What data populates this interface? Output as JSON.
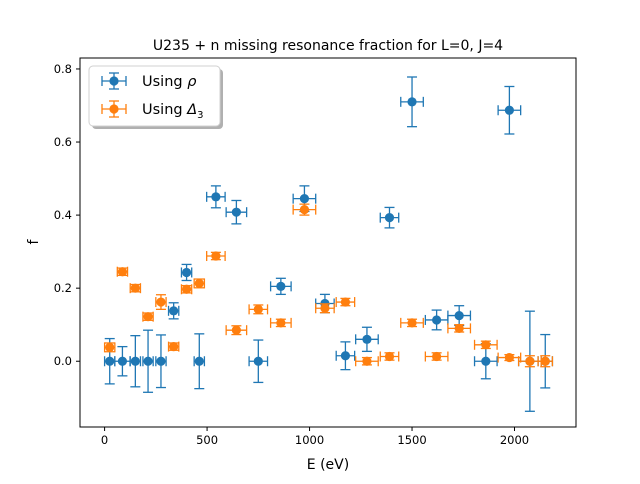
{
  "chart_data": {
    "type": "scatter",
    "title": "U235 + n missing resonance fraction for L=0, J=4",
    "xlabel": "E (eV)",
    "ylabel": "f",
    "xlim": [
      -120,
      2300
    ],
    "ylim": [
      -0.18,
      0.83
    ],
    "xticks": [
      0,
      500,
      1000,
      1500,
      2000
    ],
    "yticks": [
      0.0,
      0.2,
      0.4,
      0.6,
      0.8
    ],
    "xtick_labels": [
      "0",
      "500",
      "1000",
      "1500",
      "2000"
    ],
    "ytick_labels": [
      "0.0",
      "0.2",
      "0.4",
      "0.6",
      "0.8"
    ],
    "grid": false,
    "legend_position": "upper-left",
    "series": [
      {
        "label_prefix": "Using ",
        "label_symbol": "ρ",
        "label_sub": "",
        "color": "#1f77b4",
        "points": [
          {
            "x": 25,
            "y": 0.0,
            "xerr": 25,
            "yerr": 0.062
          },
          {
            "x": 87,
            "y": 0.0,
            "xerr": 37,
            "yerr": 0.04
          },
          {
            "x": 150,
            "y": 0.0,
            "xerr": 25,
            "yerr": 0.07
          },
          {
            "x": 212,
            "y": 0.0,
            "xerr": 25,
            "yerr": 0.085
          },
          {
            "x": 275,
            "y": 0.0,
            "xerr": 25,
            "yerr": 0.072
          },
          {
            "x": 337,
            "y": 0.138,
            "xerr": 25,
            "yerr": 0.022
          },
          {
            "x": 400,
            "y": 0.243,
            "xerr": 25,
            "yerr": 0.022
          },
          {
            "x": 462,
            "y": 0.0,
            "xerr": 25,
            "yerr": 0.075
          },
          {
            "x": 543,
            "y": 0.45,
            "xerr": 45,
            "yerr": 0.03
          },
          {
            "x": 643,
            "y": 0.408,
            "xerr": 50,
            "yerr": 0.032
          },
          {
            "x": 750,
            "y": 0.0,
            "xerr": 45,
            "yerr": 0.058
          },
          {
            "x": 860,
            "y": 0.205,
            "xerr": 50,
            "yerr": 0.022
          },
          {
            "x": 975,
            "y": 0.445,
            "xerr": 55,
            "yerr": 0.035
          },
          {
            "x": 1075,
            "y": 0.158,
            "xerr": 45,
            "yerr": 0.025
          },
          {
            "x": 1175,
            "y": 0.015,
            "xerr": 45,
            "yerr": 0.038
          },
          {
            "x": 1280,
            "y": 0.06,
            "xerr": 55,
            "yerr": 0.033
          },
          {
            "x": 1390,
            "y": 0.393,
            "xerr": 45,
            "yerr": 0.028
          },
          {
            "x": 1500,
            "y": 0.71,
            "xerr": 55,
            "yerr": 0.068
          },
          {
            "x": 1620,
            "y": 0.113,
            "xerr": 55,
            "yerr": 0.027
          },
          {
            "x": 1730,
            "y": 0.125,
            "xerr": 55,
            "yerr": 0.027
          },
          {
            "x": 1860,
            "y": 0.0,
            "xerr": 55,
            "yerr": 0.048
          },
          {
            "x": 1975,
            "y": 0.687,
            "xerr": 55,
            "yerr": 0.065
          },
          {
            "x": 2075,
            "y": 0.0,
            "xerr": 55,
            "yerr": 0.137
          },
          {
            "x": 2150,
            "y": 0.0,
            "xerr": 35,
            "yerr": 0.073
          }
        ]
      },
      {
        "label_prefix": "Using ",
        "label_symbol": "Δ",
        "label_sub": "3",
        "color": "#ff7f0e",
        "points": [
          {
            "x": 25,
            "y": 0.038,
            "xerr": 25,
            "yerr": 0.012
          },
          {
            "x": 87,
            "y": 0.245,
            "xerr": 25,
            "yerr": 0.01
          },
          {
            "x": 150,
            "y": 0.2,
            "xerr": 25,
            "yerr": 0.01
          },
          {
            "x": 212,
            "y": 0.122,
            "xerr": 25,
            "yerr": 0.01
          },
          {
            "x": 275,
            "y": 0.162,
            "xerr": 25,
            "yerr": 0.02
          },
          {
            "x": 337,
            "y": 0.04,
            "xerr": 25,
            "yerr": 0.01
          },
          {
            "x": 400,
            "y": 0.197,
            "xerr": 25,
            "yerr": 0.01
          },
          {
            "x": 462,
            "y": 0.213,
            "xerr": 25,
            "yerr": 0.012
          },
          {
            "x": 543,
            "y": 0.288,
            "xerr": 45,
            "yerr": 0.01
          },
          {
            "x": 643,
            "y": 0.085,
            "xerr": 50,
            "yerr": 0.012
          },
          {
            "x": 750,
            "y": 0.142,
            "xerr": 45,
            "yerr": 0.012
          },
          {
            "x": 860,
            "y": 0.105,
            "xerr": 50,
            "yerr": 0.01
          },
          {
            "x": 975,
            "y": 0.415,
            "xerr": 55,
            "yerr": 0.015
          },
          {
            "x": 1075,
            "y": 0.145,
            "xerr": 45,
            "yerr": 0.012
          },
          {
            "x": 1175,
            "y": 0.162,
            "xerr": 45,
            "yerr": 0.01
          },
          {
            "x": 1280,
            "y": 0.0,
            "xerr": 55,
            "yerr": 0.01
          },
          {
            "x": 1390,
            "y": 0.013,
            "xerr": 45,
            "yerr": 0.01
          },
          {
            "x": 1500,
            "y": 0.105,
            "xerr": 55,
            "yerr": 0.01
          },
          {
            "x": 1620,
            "y": 0.013,
            "xerr": 55,
            "yerr": 0.01
          },
          {
            "x": 1730,
            "y": 0.09,
            "xerr": 55,
            "yerr": 0.01
          },
          {
            "x": 1860,
            "y": 0.045,
            "xerr": 55,
            "yerr": 0.01
          },
          {
            "x": 1975,
            "y": 0.01,
            "xerr": 55,
            "yerr": 0.008
          },
          {
            "x": 2075,
            "y": 0.0,
            "xerr": 55,
            "yerr": 0.015
          },
          {
            "x": 2150,
            "y": 0.0,
            "xerr": 35,
            "yerr": 0.015
          }
        ]
      }
    ]
  }
}
